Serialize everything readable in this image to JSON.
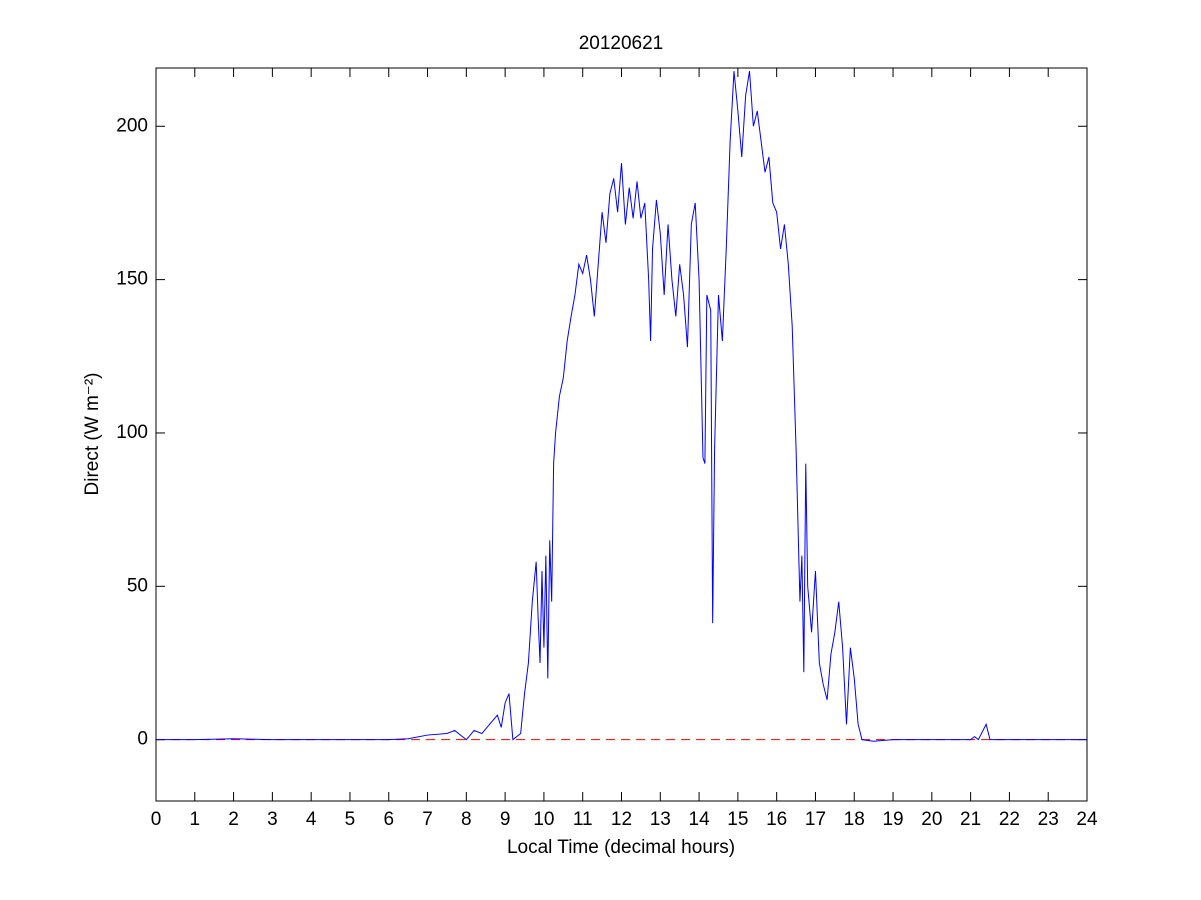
{
  "chart_data": {
    "type": "line",
    "title": "20120621",
    "xlabel": "Local Time (decimal hours)",
    "ylabel": "Direct (W m⁻²)",
    "x": [
      0,
      1,
      2,
      3,
      4,
      5,
      6,
      6.5,
      7,
      7.5,
      7.7,
      7.9,
      8,
      8.2,
      8.4,
      8.6,
      8.8,
      8.9,
      9,
      9.1,
      9.2,
      9.4,
      9.5,
      9.6,
      9.7,
      9.8,
      9.85,
      9.9,
      9.95,
      10,
      10.05,
      10.1,
      10.15,
      10.2,
      10.25,
      10.3,
      10.4,
      10.5,
      10.6,
      10.7,
      10.8,
      10.9,
      11,
      11.1,
      11.2,
      11.3,
      11.4,
      11.5,
      11.6,
      11.7,
      11.8,
      11.9,
      12,
      12.1,
      12.2,
      12.3,
      12.4,
      12.5,
      12.6,
      12.7,
      12.75,
      12.8,
      12.9,
      13,
      13.1,
      13.2,
      13.3,
      13.4,
      13.5,
      13.6,
      13.7,
      13.8,
      13.9,
      14,
      14.1,
      14.15,
      14.2,
      14.3,
      14.35,
      14.4,
      14.5,
      14.6,
      14.7,
      14.8,
      14.9,
      15,
      15.1,
      15.2,
      15.3,
      15.4,
      15.5,
      15.6,
      15.7,
      15.8,
      15.9,
      16,
      16.1,
      16.2,
      16.3,
      16.4,
      16.5,
      16.6,
      16.65,
      16.7,
      16.75,
      16.8,
      16.9,
      17,
      17.1,
      17.2,
      17.3,
      17.4,
      17.5,
      17.6,
      17.7,
      17.8,
      17.9,
      18,
      18.1,
      18.2,
      18.5,
      19,
      20,
      21,
      21.1,
      21.2,
      21.4,
      21.5,
      22,
      23,
      24
    ],
    "series": [
      {
        "color": "#0000ff",
        "values": [
          0,
          0,
          0.3,
          0,
          0,
          0,
          0,
          0.3,
          1.5,
          2,
          3,
          1,
          0,
          3,
          2,
          5,
          8,
          4,
          12,
          15,
          0,
          2,
          15,
          25,
          45,
          58,
          40,
          25,
          55,
          30,
          60,
          20,
          65,
          45,
          90,
          100,
          112,
          118,
          130,
          138,
          145,
          155,
          152,
          158,
          150,
          138,
          155,
          172,
          162,
          178,
          183,
          172,
          188,
          168,
          180,
          170,
          182,
          170,
          175,
          150,
          130,
          160,
          176,
          165,
          145,
          168,
          150,
          138,
          155,
          145,
          128,
          168,
          175,
          150,
          92,
          90,
          145,
          140,
          38,
          95,
          145,
          130,
          160,
          195,
          218,
          205,
          190,
          210,
          218,
          200,
          205,
          195,
          185,
          190,
          175,
          172,
          160,
          168,
          155,
          135,
          95,
          45,
          60,
          22,
          90,
          50,
          35,
          55,
          25,
          18,
          13,
          28,
          35,
          45,
          30,
          5,
          30,
          20,
          5,
          0,
          -0.5,
          0,
          0,
          0,
          1,
          0,
          5,
          0,
          0,
          0,
          0
        ]
      }
    ],
    "reference_line": {
      "value": 0,
      "color": "#ff0000"
    },
    "xlim": [
      0,
      24
    ],
    "xticks": [
      0,
      1,
      2,
      3,
      4,
      5,
      6,
      7,
      8,
      9,
      10,
      11,
      12,
      13,
      14,
      15,
      16,
      17,
      18,
      19,
      20,
      21,
      22,
      23,
      24
    ],
    "ylim": [
      -20,
      219
    ],
    "yticks": [
      0,
      50,
      100,
      150,
      200
    ]
  }
}
